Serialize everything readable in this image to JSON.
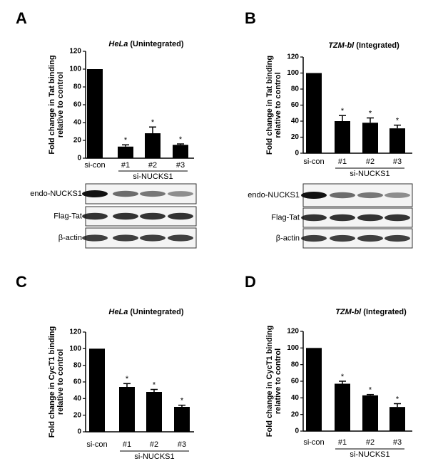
{
  "chart_data": [
    {
      "type": "bar",
      "panel": "A",
      "title_italic": "HeLa",
      "title": "(Unintegrated)",
      "ylabel": [
        "Fold change in Tat binding",
        "relative to control"
      ],
      "categories": [
        "si-con",
        "#1",
        "#2",
        "#3"
      ],
      "values": [
        100,
        13,
        28,
        15
      ],
      "errors": [
        null,
        2,
        7,
        1
      ],
      "value_labels": [
        null,
        "*",
        "*",
        "*"
      ],
      "group_label": "si-NUCKS1",
      "color": "#000000",
      "ylim": [
        0,
        120
      ],
      "yticks": [
        0,
        20,
        40,
        60,
        80,
        100,
        120
      ],
      "blot_labels": [
        "endo-NUCKS1",
        "Flag-Tat",
        "β-actin"
      ]
    },
    {
      "type": "bar",
      "panel": "B",
      "title_italic": "TZM-bl",
      "title": "(Integrated)",
      "ylabel": [
        "Fold change in Tat binding",
        "relative to control"
      ],
      "categories": [
        "si-con",
        "#1",
        "#2",
        "#3"
      ],
      "values": [
        100,
        40,
        38,
        31
      ],
      "errors": [
        null,
        7,
        6,
        4
      ],
      "value_labels": [
        null,
        "*",
        "*",
        "*"
      ],
      "group_label": "si-NUCKS1",
      "color": "#000000",
      "ylim": [
        0,
        120
      ],
      "yticks": [
        0,
        20,
        40,
        60,
        80,
        100,
        120
      ],
      "blot_labels": [
        "endo-NUCKS1",
        "Flag-Tat",
        "β-actin"
      ]
    },
    {
      "type": "bar",
      "panel": "C",
      "title_italic": "HeLa",
      "title": "(Unintegrated)",
      "ylabel": [
        "Fold change in CycT1 binding",
        "relative to control"
      ],
      "categories": [
        "si-con",
        "#1",
        "#2",
        "#3"
      ],
      "values": [
        100,
        54,
        48,
        30
      ],
      "errors": [
        null,
        4,
        3,
        2
      ],
      "value_labels": [
        null,
        "*",
        "*",
        "*"
      ],
      "group_label": "si-NUCKS1",
      "color": "#000000",
      "ylim": [
        0,
        120
      ],
      "yticks": [
        0,
        20,
        40,
        60,
        80,
        100,
        120
      ]
    },
    {
      "type": "bar",
      "panel": "D",
      "title_italic": "TZM-bl",
      "title": "(Integrated)",
      "ylabel": [
        "Fold change in CycT1 binding",
        "relative to control"
      ],
      "categories": [
        "si-con",
        "#1",
        "#2",
        "#3"
      ],
      "values": [
        100,
        57,
        43,
        29
      ],
      "errors": [
        null,
        3,
        1,
        4
      ],
      "value_labels": [
        null,
        "*",
        "*",
        "*"
      ],
      "group_label": "si-NUCKS1",
      "color": "#000000",
      "ylim": [
        0,
        120
      ],
      "yticks": [
        0,
        20,
        40,
        60,
        80,
        100,
        120
      ]
    }
  ]
}
